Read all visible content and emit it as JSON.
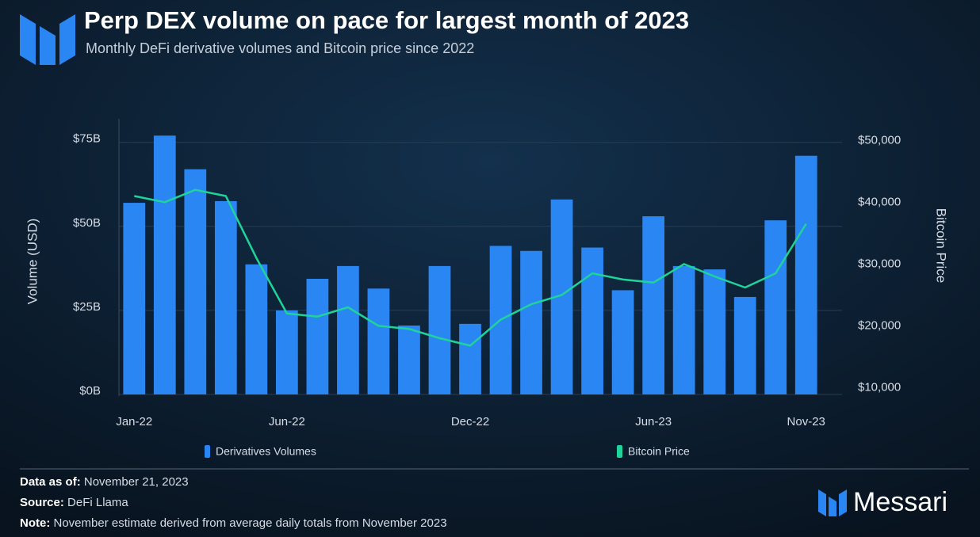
{
  "chart_data": {
    "type": "bar",
    "title": "Perp DEX volume on pace for largest month of 2023",
    "subtitle": "Monthly DeFi derivative volumes and Bitcoin price since 2022",
    "y_label": "Volume (USD)",
    "y2_label": "Bitcoin Price",
    "categories": [
      "Jan-22",
      null,
      null,
      null,
      null,
      "Jun-22",
      null,
      null,
      null,
      null,
      null,
      "Dec-22",
      null,
      null,
      null,
      null,
      null,
      "Jun-23",
      null,
      null,
      null,
      null,
      "Nov-23"
    ],
    "series": [
      {
        "name": "Derivatives Volumes",
        "type": "bar",
        "color": "#2a86f3",
        "values": [
          57,
          77,
          67,
          57.5,
          38.7,
          25,
          34.4,
          38.2,
          31.5,
          20.5,
          38.2,
          21,
          44.2,
          42.7,
          58,
          43.7,
          31,
          53,
          38.2,
          37.2,
          29,
          51.8,
          71
        ]
      },
      {
        "name": "Bitcoin Price",
        "type": "line",
        "color": "#1fd49a",
        "axis": "y2",
        "values": [
          41000,
          40000,
          42000,
          41000,
          31000,
          22000,
          21500,
          23000,
          20000,
          19500,
          18000,
          16800,
          21000,
          23500,
          25000,
          28500,
          27500,
          27000,
          30000,
          28000,
          26200,
          28500,
          36500
        ]
      }
    ],
    "ylim": [
      0,
      82
    ],
    "yticks": [
      {
        "value": 0,
        "label": "$0B"
      },
      {
        "value": 25,
        "label": "$25B"
      },
      {
        "value": 50,
        "label": "$50B"
      },
      {
        "value": 75,
        "label": "$75B"
      }
    ],
    "y2lim": [
      8900,
      53500
    ],
    "y2ticks": [
      {
        "value": 10000,
        "label": "$10,000"
      },
      {
        "value": 20000,
        "label": "$20,000"
      },
      {
        "value": 30000,
        "label": "$30,000"
      },
      {
        "value": 40000,
        "label": "$40,000"
      },
      {
        "value": 50000,
        "label": "$50,000"
      }
    ],
    "grid": true,
    "legend": "bottom"
  },
  "footer": {
    "data_as_of": {
      "label": "Data as of:",
      "value": "November 21, 2023"
    },
    "source": {
      "label": "Source:",
      "value": "DeFi Llama"
    },
    "note": {
      "label": "Note:",
      "value": "November estimate derived from average daily totals from November 2023"
    }
  },
  "brand": "Messari"
}
